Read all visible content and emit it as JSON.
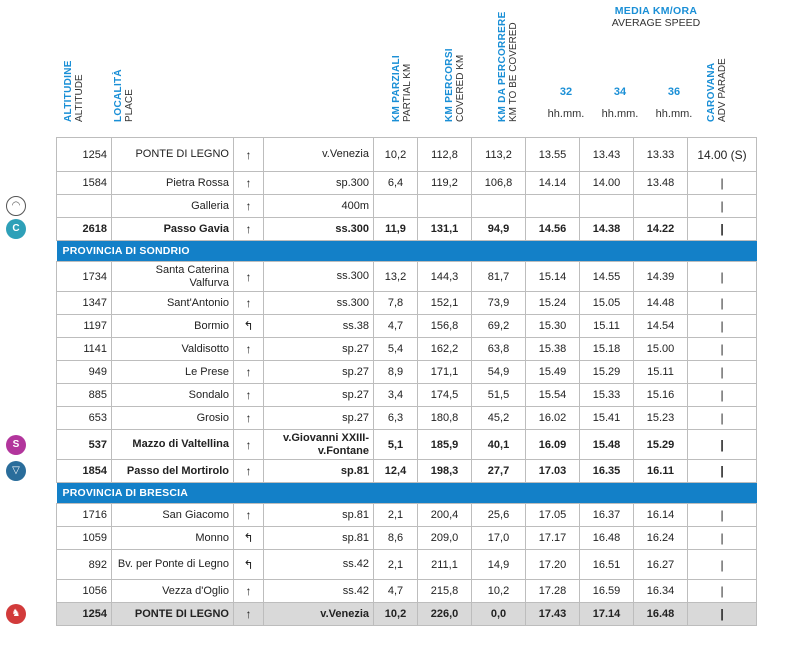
{
  "header": {
    "altitude_it": "ALTITUDINE",
    "altitude_en": "ALTITUDE",
    "place_it": "LOCALITÀ",
    "place_en": "PLACE",
    "partial_it": "KM PARZIALI",
    "partial_en": "PARTIAL KM",
    "covered_it": "KM PERCORSI",
    "covered_en": "COVERED KM",
    "tobe_it": "KM DA PERCORRERE",
    "tobe_en": "KM TO BE COVERED",
    "media_it": "MEDIA KM/ORA",
    "media_en": "AVERAGE SPEED",
    "speeds": [
      "32",
      "34",
      "36"
    ],
    "time_unit": "hh.mm.",
    "caravan_it": "CAROVANA",
    "caravan_en": "ADV PARADE"
  },
  "sections": {
    "sondrio": "PROVINCIA DI SONDRIO",
    "brescia": "PROVINCIA DI BRESCIA"
  },
  "icons": {
    "tunnel": "tunnel-icon",
    "gpm": "mountain-gpm-icon",
    "sprint": "intermediate-sprint-icon",
    "shield": "mortirolo-shield-icon",
    "finish": "finish-icon"
  },
  "rows": [
    {
      "alt": "1254",
      "loc": "PONTE DI LEGNO",
      "arr": "↑",
      "road": "v.Venezia",
      "p": "10,2",
      "c": "112,8",
      "t": "113,2",
      "s32": "13.55",
      "s34": "13.43",
      "s36": "13.33",
      "car": "14.00 (S)"
    },
    {
      "alt": "1584",
      "loc": "Pietra Rossa",
      "arr": "↑",
      "road": "sp.300",
      "p": "6,4",
      "c": "119,2",
      "t": "106,8",
      "s32": "14.14",
      "s34": "14.00",
      "s36": "13.48",
      "car": "|"
    },
    {
      "alt": "",
      "loc": "Galleria",
      "arr": "↑",
      "road": "400m",
      "p": "",
      "c": "",
      "t": "",
      "s32": "",
      "s34": "",
      "s36": "",
      "car": "|"
    },
    {
      "alt": "2618",
      "loc": "Passo Gavia",
      "arr": "↑",
      "road": "ss.300",
      "p": "11,9",
      "c": "131,1",
      "t": "94,9",
      "s32": "14.56",
      "s34": "14.38",
      "s36": "14.22",
      "car": "|"
    },
    {
      "alt": "1734",
      "loc": "Santa Caterina Valfurva",
      "arr": "↑",
      "road": "ss.300",
      "p": "13,2",
      "c": "144,3",
      "t": "81,7",
      "s32": "15.14",
      "s34": "14.55",
      "s36": "14.39",
      "car": "|"
    },
    {
      "alt": "1347",
      "loc": "Sant'Antonio",
      "arr": "↑",
      "road": "ss.300",
      "p": "7,8",
      "c": "152,1",
      "t": "73,9",
      "s32": "15.24",
      "s34": "15.05",
      "s36": "14.48",
      "car": "|"
    },
    {
      "alt": "1197",
      "loc": "Bormio",
      "arr": "↰",
      "road": "ss.38",
      "p": "4,7",
      "c": "156,8",
      "t": "69,2",
      "s32": "15.30",
      "s34": "15.11",
      "s36": "14.54",
      "car": "|"
    },
    {
      "alt": "1141",
      "loc": "Valdisotto",
      "arr": "↑",
      "road": "sp.27",
      "p": "5,4",
      "c": "162,2",
      "t": "63,8",
      "s32": "15.38",
      "s34": "15.18",
      "s36": "15.00",
      "car": "|"
    },
    {
      "alt": "949",
      "loc": "Le Prese",
      "arr": "↑",
      "road": "sp.27",
      "p": "8,9",
      "c": "171,1",
      "t": "54,9",
      "s32": "15.49",
      "s34": "15.29",
      "s36": "15.11",
      "car": "|"
    },
    {
      "alt": "885",
      "loc": "Sondalo",
      "arr": "↑",
      "road": "sp.27",
      "p": "3,4",
      "c": "174,5",
      "t": "51,5",
      "s32": "15.54",
      "s34": "15.33",
      "s36": "15.16",
      "car": "|"
    },
    {
      "alt": "653",
      "loc": "Grosio",
      "arr": "↑",
      "road": "sp.27",
      "p": "6,3",
      "c": "180,8",
      "t": "45,2",
      "s32": "16.02",
      "s34": "15.41",
      "s36": "15.23",
      "car": "|"
    },
    {
      "alt": "537",
      "loc": "Mazzo di Valtellina",
      "arr": "↑",
      "road": "v.Giovanni XXIII-v.Fontane",
      "p": "5,1",
      "c": "185,9",
      "t": "40,1",
      "s32": "16.09",
      "s34": "15.48",
      "s36": "15.29",
      "car": "|"
    },
    {
      "alt": "1854",
      "loc": "Passo del Mortirolo",
      "arr": "↑",
      "road": "sp.81",
      "p": "12,4",
      "c": "198,3",
      "t": "27,7",
      "s32": "17.03",
      "s34": "16.35",
      "s36": "16.11",
      "car": "|"
    },
    {
      "alt": "1716",
      "loc": "San Giacomo",
      "arr": "↑",
      "road": "sp.81",
      "p": "2,1",
      "c": "200,4",
      "t": "25,6",
      "s32": "17.05",
      "s34": "16.37",
      "s36": "16.14",
      "car": "|"
    },
    {
      "alt": "1059",
      "loc": "Monno",
      "arr": "↰",
      "road": "sp.81",
      "p": "8,6",
      "c": "209,0",
      "t": "17,0",
      "s32": "17.17",
      "s34": "16.48",
      "s36": "16.24",
      "car": "|"
    },
    {
      "alt": "892",
      "loc": "Bv. per Ponte di Legno",
      "arr": "↰",
      "road": "ss.42",
      "p": "2,1",
      "c": "211,1",
      "t": "14,9",
      "s32": "17.20",
      "s34": "16.51",
      "s36": "16.27",
      "car": "|"
    },
    {
      "alt": "1056",
      "loc": "Vezza d'Oglio",
      "arr": "↑",
      "road": "ss.42",
      "p": "4,7",
      "c": "215,8",
      "t": "10,2",
      "s32": "17.28",
      "s34": "16.59",
      "s36": "16.34",
      "car": "|"
    },
    {
      "alt": "1254",
      "loc": "PONTE DI LEGNO",
      "arr": "↑",
      "road": "v.Venezia",
      "p": "10,2",
      "c": "226,0",
      "t": "0,0",
      "s32": "17.43",
      "s34": "17.14",
      "s36": "16.48",
      "car": "|"
    }
  ]
}
